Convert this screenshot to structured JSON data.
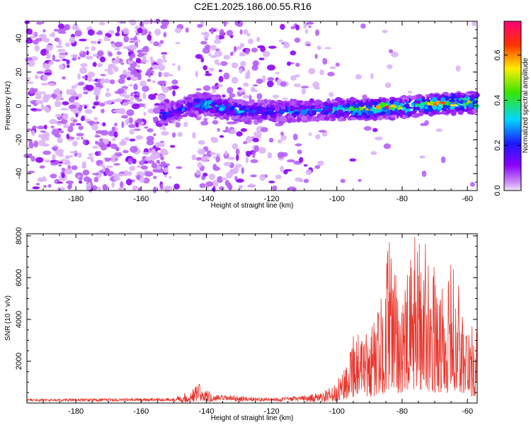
{
  "title": "C2E1.2025.186.00.55.R16",
  "colors": {
    "trace": "#e8332a",
    "spectrogram_floor": "#d9c4f2",
    "spectrogram_mid": "#8a3ee0",
    "spectrogram_high": "#3a10c8"
  },
  "chart_data": [
    {
      "type": "heatmap",
      "xlabel": "Height of straight line (km)",
      "ylabel": "Frequency (Hz)",
      "xlim": [
        -195,
        -57
      ],
      "ylim": [
        -50,
        50
      ],
      "x_ticks": [
        -180,
        -160,
        -140,
        -120,
        -100,
        -80,
        -60
      ],
      "y_ticks": [
        -40,
        -20,
        0,
        20,
        40
      ],
      "colorbar": {
        "label": "Normalized spectral amplitude",
        "range": [
          0.0,
          0.75
        ],
        "ticks": [
          "0.0",
          "0.2",
          "0.4",
          "0.6"
        ],
        "colormap": "rainbow (magenta-blue-cyan-green-yellow-red)"
      },
      "band_center_hz": [
        [
          -152,
          -5
        ],
        [
          -145,
          0
        ],
        [
          -140,
          1
        ],
        [
          -130,
          -3
        ],
        [
          -120,
          -3
        ],
        [
          -110,
          -3
        ],
        [
          -100,
          -2
        ],
        [
          -90,
          -2
        ],
        [
          -80,
          -1
        ],
        [
          -70,
          1
        ],
        [
          -60,
          2
        ]
      ],
      "band_peak_amplitude": [
        [
          -150,
          0.25
        ],
        [
          -142,
          0.4
        ],
        [
          -125,
          0.3
        ],
        [
          -110,
          0.3
        ],
        [
          -95,
          0.45
        ],
        [
          -85,
          0.75
        ],
        [
          -78,
          0.5
        ],
        [
          -68,
          0.7
        ],
        [
          -60,
          0.55
        ]
      ],
      "grid": false
    },
    {
      "type": "line",
      "xlabel": "Height of straight line (km)",
      "ylabel": "SNR (10 * v/v)",
      "xlim": [
        -195,
        -57
      ],
      "ylim": [
        0,
        8100
      ],
      "x_ticks": [
        -180,
        -160,
        -140,
        -120,
        -100,
        -80,
        -60
      ],
      "y_ticks": [
        2000,
        4000,
        6000,
        8000
      ],
      "series": [
        {
          "color": "#e8332a",
          "envelope": [
            [
              -195,
              200
            ],
            [
              -170,
              220
            ],
            [
              -150,
              250
            ],
            [
              -145,
              600
            ],
            [
              -142,
              1000
            ],
            [
              -138,
              400
            ],
            [
              -120,
              250
            ],
            [
              -110,
              350
            ],
            [
              -105,
              500
            ],
            [
              -100,
              900
            ],
            [
              -97,
              2500
            ],
            [
              -95,
              3800
            ],
            [
              -92,
              3000
            ],
            [
              -88,
              4200
            ],
            [
              -86,
              5200
            ],
            [
              -84,
              8000
            ],
            [
              -82,
              6000
            ],
            [
              -79,
              5500
            ],
            [
              -76,
              8000
            ],
            [
              -73,
              8000
            ],
            [
              -70,
              6200
            ],
            [
              -67,
              5500
            ],
            [
              -64,
              7000
            ],
            [
              -61,
              4200
            ],
            [
              -58,
              3500
            ]
          ]
        }
      ],
      "grid": false
    }
  ]
}
